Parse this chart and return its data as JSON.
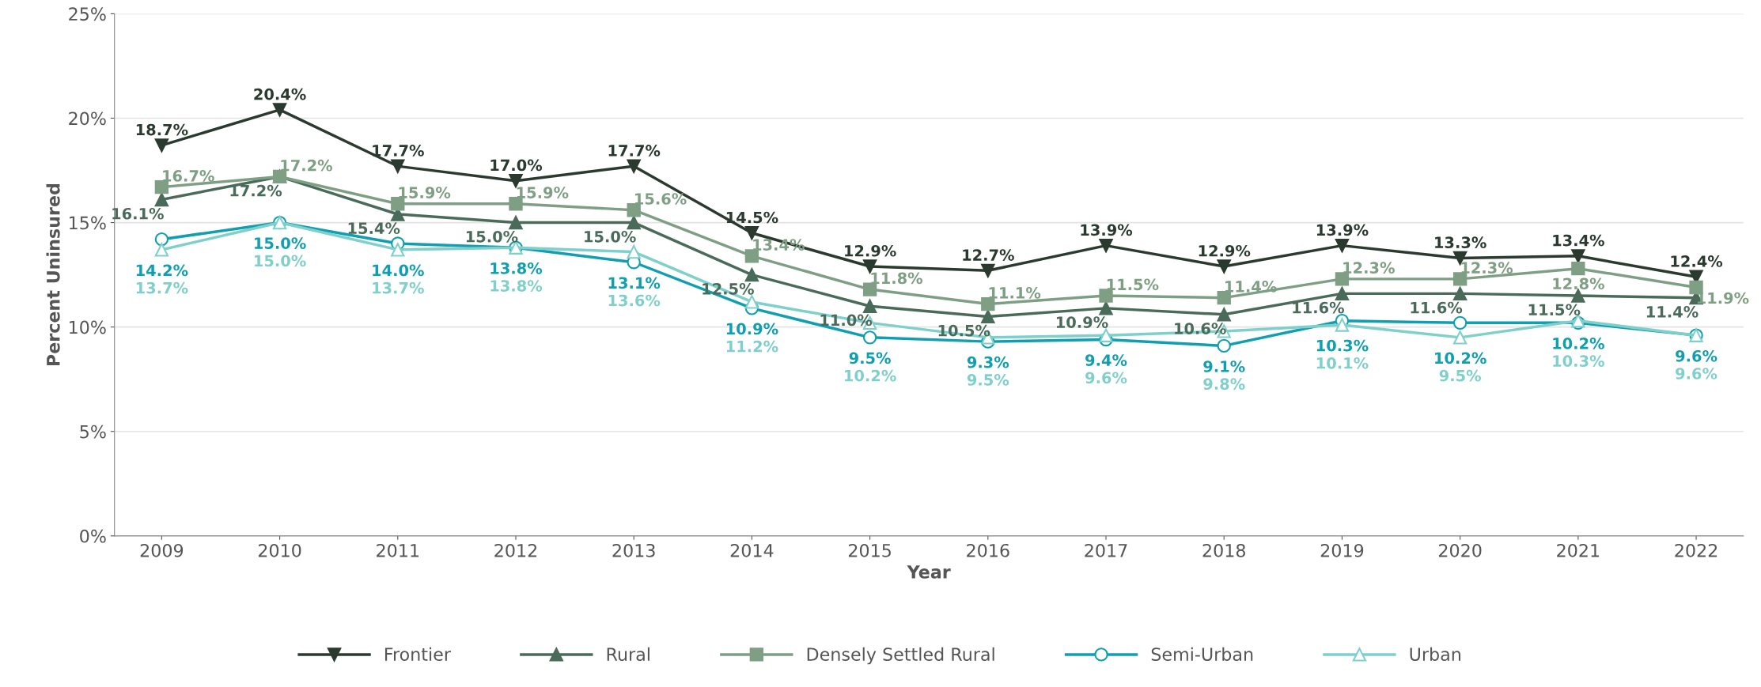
{
  "chart_data": {
    "type": "line",
    "xlabel": "Year",
    "ylabel": "Percent Uninsured",
    "categories": [
      "2009",
      "2010",
      "2011",
      "2012",
      "2013",
      "2014",
      "2015",
      "2016",
      "2017",
      "2018",
      "2019",
      "2020",
      "2021",
      "2022"
    ],
    "ylim": [
      0,
      25
    ],
    "yticks": [
      {
        "value": 0,
        "label": "0%"
      },
      {
        "value": 5,
        "label": "5%"
      },
      {
        "value": 10,
        "label": "10%"
      },
      {
        "value": 15,
        "label": "15%"
      },
      {
        "value": 20,
        "label": "20%"
      },
      {
        "value": 25,
        "label": "25%"
      }
    ],
    "grid": "y",
    "legend": "bottom",
    "series": [
      {
        "name": "Frontier",
        "color": "#2b3a2e",
        "marker": "triangle_down",
        "values": [
          18.7,
          20.4,
          17.7,
          17.0,
          17.7,
          14.5,
          12.9,
          12.7,
          13.9,
          12.9,
          13.9,
          13.3,
          13.4,
          12.4
        ],
        "value_labels": [
          "18.7%",
          "20.4%",
          "17.7%",
          "17.0%",
          "17.7%",
          "14.5%",
          "12.9%",
          "12.7%",
          "13.9%",
          "12.9%",
          "13.9%",
          "13.3%",
          "13.4%",
          "12.4%"
        ]
      },
      {
        "name": "Rural",
        "color": "#4a6b5a",
        "marker": "triangle",
        "values": [
          16.1,
          17.2,
          15.4,
          15.0,
          15.0,
          12.5,
          11.0,
          10.5,
          10.9,
          10.6,
          11.6,
          11.6,
          11.5,
          11.4
        ],
        "value_labels": [
          "16.1%",
          "17.2%",
          "15.4%",
          "15.0%",
          "15.0%",
          "12.5%",
          "11.0%",
          "10.5%",
          "10.9%",
          "10.6%",
          "11.6%",
          "11.6%",
          "11.5%",
          "11.4%"
        ]
      },
      {
        "name": "Densely Settled Rural",
        "color": "#7f9f85",
        "marker": "square",
        "values": [
          16.7,
          17.2,
          15.9,
          15.9,
          15.6,
          13.4,
          11.8,
          11.1,
          11.5,
          11.4,
          12.3,
          12.3,
          12.8,
          11.9
        ],
        "value_labels": [
          "16.7%",
          "17.2%",
          "15.9%",
          "15.9%",
          "15.6%",
          "13.4%",
          "11.8%",
          "11.1%",
          "11.5%",
          "11.4%",
          "12.3%",
          "12.3%",
          "12.8%",
          "11.9%"
        ]
      },
      {
        "name": "Semi-Urban",
        "color": "#0f9fb0",
        "marker": "circle",
        "values": [
          14.2,
          15.0,
          14.0,
          13.8,
          13.1,
          10.9,
          9.5,
          9.3,
          9.4,
          9.1,
          10.3,
          10.2,
          10.2,
          9.6
        ],
        "value_labels": [
          "14.2%",
          "15.0%",
          "14.0%",
          "13.8%",
          "13.1%",
          "10.9%",
          "9.5%",
          "9.3%",
          "9.4%",
          "9.1%",
          "10.3%",
          "10.2%",
          "10.2%",
          "9.6%"
        ]
      },
      {
        "name": "Urban",
        "color": "#7fcfcb",
        "marker": "triangle",
        "values": [
          13.7,
          15.0,
          13.7,
          13.8,
          13.6,
          11.2,
          10.2,
          9.5,
          9.6,
          9.8,
          10.1,
          9.5,
          10.3,
          9.6
        ],
        "value_labels": [
          "13.7%",
          "15.0%",
          "13.7%",
          "13.8%",
          "13.6%",
          "11.2%",
          "10.2%",
          "9.5%",
          "9.6%",
          "9.8%",
          "10.1%",
          "9.5%",
          "10.3%",
          "9.6%"
        ]
      }
    ]
  }
}
